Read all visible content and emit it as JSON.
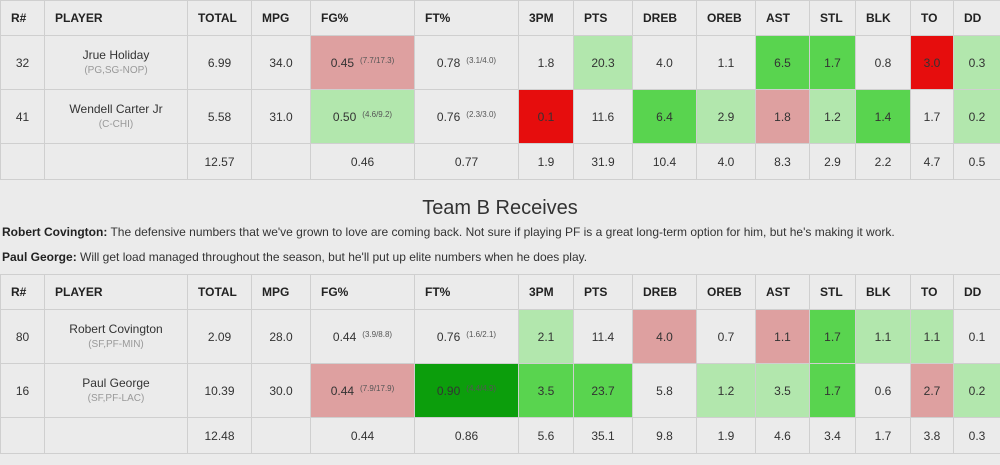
{
  "columns": [
    "R#",
    "PLAYER",
    "TOTAL",
    "MPG",
    "FG%",
    "FT%",
    "3PM",
    "PTS",
    "DREB",
    "OREB",
    "AST",
    "STL",
    "BLK",
    "TO",
    "DD"
  ],
  "team_a": {
    "players": [
      {
        "rank": "32",
        "name": "Jrue Holiday",
        "team": "(PG,SG-NOP)",
        "total": "6.99",
        "mpg": "34.0",
        "fg": "0.45",
        "fg_detail": "(7.7/17.3)",
        "ft": "0.78",
        "ft_detail": "(3.1/4.0)",
        "tpm": "1.8",
        "pts": "20.3",
        "dreb": "4.0",
        "oreb": "1.1",
        "ast": "6.5",
        "stl": "1.7",
        "blk": "0.8",
        "to": "3.0",
        "dd": "0.3"
      },
      {
        "rank": "41",
        "name": "Wendell Carter Jr",
        "team": "(C-CHI)",
        "total": "5.58",
        "mpg": "31.0",
        "fg": "0.50",
        "fg_detail": "(4.6/9.2)",
        "ft": "0.76",
        "ft_detail": "(2.3/3.0)",
        "tpm": "0.1",
        "pts": "11.6",
        "dreb": "6.4",
        "oreb": "2.9",
        "ast": "1.8",
        "stl": "1.2",
        "blk": "1.4",
        "to": "1.7",
        "dd": "0.2"
      }
    ],
    "totals": {
      "total": "12.57",
      "fg": "0.46",
      "ft": "0.77",
      "tpm": "1.9",
      "pts": "31.9",
      "dreb": "10.4",
      "oreb": "4.0",
      "ast": "8.3",
      "stl": "2.9",
      "blk": "2.2",
      "to": "4.7",
      "dd": "0.5"
    }
  },
  "team_b_heading": "Team B Receives",
  "notes": [
    {
      "name": "Robert Covington:",
      "text": " The defensive numbers that we've grown to love are coming back. Not sure if playing PF is a great long-term option for him, but he's making it work."
    },
    {
      "name": "Paul George:",
      "text": " Will get load managed throughout the season, but he'll put up elite numbers when he does play."
    }
  ],
  "team_b": {
    "players": [
      {
        "rank": "80",
        "name": "Robert Covington",
        "team": "(SF,PF-MIN)",
        "total": "2.09",
        "mpg": "28.0",
        "fg": "0.44",
        "fg_detail": "(3.9/8.8)",
        "ft": "0.76",
        "ft_detail": "(1.6/2.1)",
        "tpm": "2.1",
        "pts": "11.4",
        "dreb": "4.0",
        "oreb": "0.7",
        "ast": "1.1",
        "stl": "1.7",
        "blk": "1.1",
        "to": "1.1",
        "dd": "0.1"
      },
      {
        "rank": "16",
        "name": "Paul George",
        "team": "(SF,PF-LAC)",
        "total": "10.39",
        "mpg": "30.0",
        "fg": "0.44",
        "fg_detail": "(7.9/17.9)",
        "ft": "0.90",
        "ft_detail": "(4.4/4.9)",
        "tpm": "3.5",
        "pts": "23.7",
        "dreb": "5.8",
        "oreb": "1.2",
        "ast": "3.5",
        "stl": "1.7",
        "blk": "0.6",
        "to": "2.7",
        "dd": "0.2"
      }
    ],
    "totals": {
      "total": "12.48",
      "fg": "0.44",
      "ft": "0.86",
      "tpm": "5.6",
      "pts": "35.1",
      "dreb": "9.8",
      "oreb": "1.9",
      "ast": "4.6",
      "stl": "3.4",
      "blk": "1.7",
      "to": "3.8",
      "dd": "0.3"
    }
  },
  "cell_colors": {
    "light_green": "#b2e7ad",
    "green": "#59d44f",
    "dark_green": "#0c9e0c",
    "light_red": "#dea0a0",
    "red": "#e60d0d"
  }
}
